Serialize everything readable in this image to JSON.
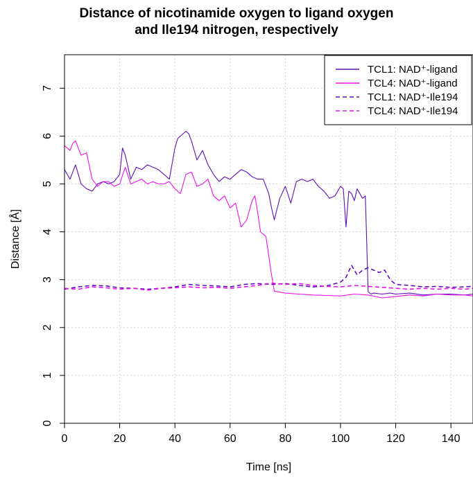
{
  "chart_data": {
    "type": "line",
    "title_lines": [
      "Distance of nicotinamide oxygen to ligand oxygen",
      "and Ile194 nitrogen, respectively"
    ],
    "xlabel": "Time [ns]",
    "ylabel": "Distance [Å]",
    "xlim": [
      0,
      148
    ],
    "ylim": [
      0,
      7.7
    ],
    "x_ticks": [
      0,
      20,
      40,
      60,
      80,
      100,
      120,
      140
    ],
    "y_ticks": [
      0,
      1,
      2,
      3,
      4,
      5,
      6,
      7
    ],
    "grid": true,
    "legend_position": "top-right",
    "series": [
      {
        "name": "TCL1: NAD⁺-ligand",
        "color": "#5b0eb8",
        "dash": "solid",
        "x": [
          0,
          2,
          4,
          6,
          8,
          10,
          12,
          14,
          16,
          18,
          20,
          21,
          22,
          24,
          26,
          28,
          30,
          32,
          34,
          36,
          38,
          40,
          41,
          42,
          43,
          44,
          45,
          46,
          48,
          50,
          52,
          54,
          56,
          58,
          60,
          62,
          64,
          66,
          68,
          70,
          72,
          74,
          75,
          76,
          78,
          80,
          82,
          84,
          86,
          88,
          90,
          92,
          94,
          96,
          98,
          100,
          101,
          102,
          103,
          104,
          105,
          106,
          107,
          108,
          109,
          110,
          111,
          112,
          115,
          118,
          120,
          125,
          130,
          135,
          140,
          145,
          148
        ],
        "values": [
          5.3,
          5.1,
          5.4,
          5.0,
          4.9,
          4.85,
          5.0,
          5.05,
          5.0,
          5.05,
          5.2,
          5.75,
          5.6,
          5.1,
          5.35,
          5.3,
          5.4,
          5.35,
          5.3,
          5.2,
          5.1,
          5.75,
          5.95,
          6.0,
          6.05,
          6.1,
          6.05,
          5.9,
          5.5,
          5.7,
          5.4,
          5.2,
          5.05,
          5.15,
          5.1,
          5.2,
          5.3,
          5.25,
          5.15,
          5.1,
          5.1,
          4.8,
          4.5,
          4.25,
          4.7,
          4.95,
          4.6,
          5.05,
          5.1,
          5.05,
          5.1,
          4.95,
          4.85,
          4.7,
          4.75,
          4.95,
          4.9,
          4.1,
          4.85,
          4.8,
          4.65,
          4.9,
          4.8,
          4.7,
          4.75,
          2.75,
          2.7,
          2.72,
          2.7,
          2.72,
          2.7,
          2.72,
          2.68,
          2.7,
          2.7,
          2.68,
          2.7
        ]
      },
      {
        "name": "TCL4: NAD⁺-ligand",
        "color": "#ee10ee",
        "dash": "solid",
        "x": [
          0,
          2,
          3,
          4,
          6,
          8,
          10,
          12,
          14,
          16,
          18,
          20,
          22,
          24,
          26,
          28,
          30,
          32,
          34,
          36,
          38,
          40,
          42,
          44,
          46,
          48,
          50,
          52,
          54,
          56,
          58,
          60,
          62,
          64,
          66,
          68,
          69,
          70,
          71,
          72,
          73,
          74,
          75,
          76,
          80,
          85,
          90,
          95,
          100,
          105,
          110,
          115,
          120,
          125,
          130,
          135,
          140,
          145,
          148
        ],
        "values": [
          5.8,
          5.7,
          5.85,
          5.9,
          5.6,
          5.65,
          5.1,
          4.95,
          5.05,
          5.05,
          4.95,
          5.0,
          5.35,
          5.0,
          5.05,
          5.1,
          5.0,
          5.05,
          5.0,
          5.0,
          5.05,
          4.9,
          4.8,
          5.2,
          5.25,
          4.95,
          5.0,
          5.1,
          4.75,
          4.65,
          4.75,
          4.5,
          4.6,
          4.1,
          4.25,
          4.65,
          4.75,
          4.4,
          4.0,
          3.95,
          3.9,
          3.5,
          3.1,
          2.76,
          2.72,
          2.7,
          2.68,
          2.67,
          2.66,
          2.7,
          2.68,
          2.62,
          2.65,
          2.68,
          2.66,
          2.7,
          2.68,
          2.68,
          2.66
        ]
      },
      {
        "name": "TCL1: NAD⁺-Ile194",
        "color": "#5b0eb8",
        "dash": "dashed",
        "x": [
          0,
          5,
          10,
          15,
          20,
          25,
          30,
          35,
          40,
          45,
          50,
          55,
          60,
          65,
          70,
          75,
          80,
          85,
          90,
          95,
          100,
          102,
          104,
          105,
          106,
          108,
          110,
          112,
          114,
          116,
          118,
          120,
          125,
          130,
          135,
          140,
          145,
          148
        ],
        "values": [
          2.8,
          2.85,
          2.88,
          2.87,
          2.83,
          2.82,
          2.8,
          2.82,
          2.85,
          2.9,
          2.88,
          2.87,
          2.85,
          2.9,
          2.92,
          2.9,
          2.92,
          2.88,
          2.85,
          2.87,
          2.95,
          3.05,
          3.3,
          3.2,
          3.1,
          3.2,
          3.25,
          3.2,
          3.15,
          3.2,
          3.0,
          2.9,
          2.88,
          2.85,
          2.86,
          2.84,
          2.85,
          2.86
        ]
      },
      {
        "name": "TCL4: NAD⁺-Ile194",
        "color": "#ee10ee",
        "dash": "dashed",
        "x": [
          0,
          5,
          10,
          15,
          20,
          25,
          30,
          35,
          40,
          45,
          50,
          55,
          60,
          65,
          70,
          75,
          80,
          85,
          90,
          95,
          100,
          105,
          110,
          115,
          120,
          125,
          130,
          135,
          140,
          145,
          148
        ],
        "values": [
          2.82,
          2.8,
          2.85,
          2.83,
          2.8,
          2.82,
          2.78,
          2.82,
          2.83,
          2.85,
          2.83,
          2.84,
          2.82,
          2.85,
          2.88,
          2.93,
          2.9,
          2.92,
          2.88,
          2.86,
          2.85,
          2.88,
          2.86,
          2.84,
          2.82,
          2.8,
          2.82,
          2.8,
          2.82,
          2.8,
          2.82
        ]
      }
    ]
  }
}
